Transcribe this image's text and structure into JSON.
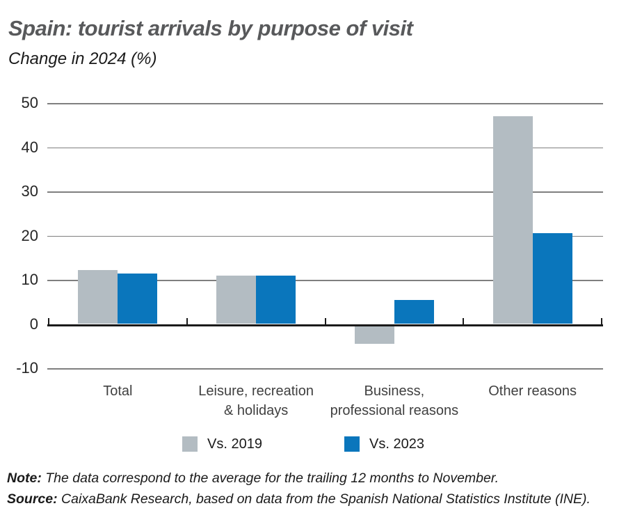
{
  "header": {
    "title": "Spain: tourist arrivals by purpose of visit",
    "subtitle": "Change in 2024 (%)"
  },
  "chart_data": {
    "type": "bar",
    "title": "Spain: tourist arrivals by purpose of visit",
    "subtitle": "Change in 2024 (%)",
    "categories": [
      "Total",
      "Leisure, recreation\n& holidays",
      "Business,\nprofessional reasons",
      "Other reasons"
    ],
    "series": [
      {
        "name": "Vs. 2019",
        "color": "#b3bcc2",
        "values": [
          12.2,
          11.0,
          -4.5,
          47.0
        ]
      },
      {
        "name": "Vs. 2023",
        "color": "#0a76bc",
        "values": [
          11.4,
          11.0,
          5.5,
          20.5
        ]
      }
    ],
    "ylim": [
      -10,
      50
    ],
    "yticks": [
      50,
      40,
      30,
      20,
      10,
      0,
      -10
    ],
    "grid": true,
    "legend_position": "bottom"
  },
  "colors": {
    "bar_gray": "#b3bcc2",
    "bar_blue": "#0a76bc",
    "gridline": "#7f7f7f",
    "axis": "#1a1a1a",
    "title": "#58595b",
    "text": "#1a1a1a"
  },
  "footer": {
    "note_label": "Note:",
    "note_text": " The data correspond to the average for the trailing 12 months to November.",
    "source_label": "Source:",
    "source_text": " CaixaBank Research, based on data from the Spanish National Statistics Institute (INE)."
  }
}
